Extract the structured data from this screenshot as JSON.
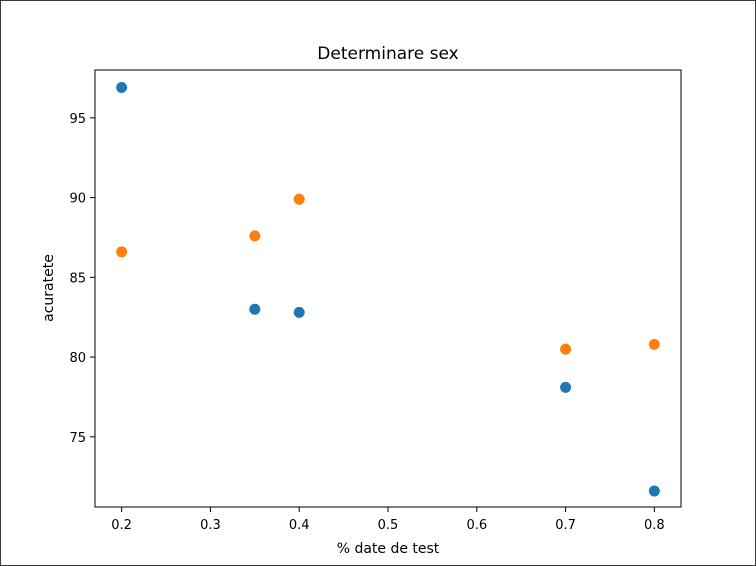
{
  "chart_data": {
    "type": "scatter",
    "title": "Determinare sex",
    "xlabel": "% date de test",
    "ylabel": "acuratete",
    "xlim": [
      0.17,
      0.83
    ],
    "ylim": [
      70.6,
      98.0
    ],
    "x_ticks": [
      0.2,
      0.3,
      0.4,
      0.5,
      0.6,
      0.7,
      0.8
    ],
    "x_tick_labels": [
      "0.2",
      "0.3",
      "0.4",
      "0.5",
      "0.6",
      "0.7",
      "0.8"
    ],
    "y_ticks": [
      75,
      80,
      85,
      90,
      95
    ],
    "y_tick_labels": [
      "75",
      "80",
      "85",
      "90",
      "95"
    ],
    "grid": false,
    "series": [
      {
        "color": "#1f77b4",
        "x": [
          0.2,
          0.35,
          0.4,
          0.7,
          0.8
        ],
        "y": [
          96.9,
          83.0,
          82.8,
          78.1,
          71.6
        ]
      },
      {
        "color": "#ff7f0e",
        "x": [
          0.2,
          0.35,
          0.4,
          0.7,
          0.8
        ],
        "y": [
          86.6,
          87.6,
          89.9,
          80.5,
          80.8
        ]
      }
    ]
  }
}
